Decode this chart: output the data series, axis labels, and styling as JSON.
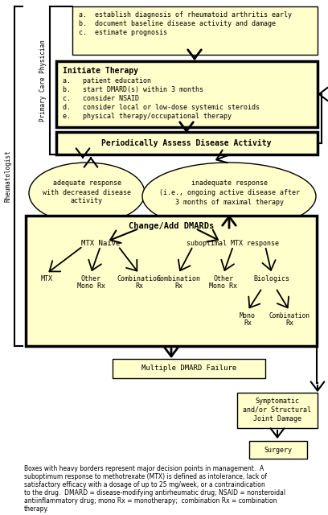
{
  "bg_color": "#FFFFFF",
  "box_fill": "#FFFFCC",
  "footnote_lines": [
    "Boxes with heavy borders represent major decision points in management.  A",
    "suboptimum response to methotrexate (MTX) is defined as intolerance, lack of",
    "satisfactory efficacy with a dosage of up to 25 mg/week, or a contraindication",
    "to the drug.  DMARD = disease-modifying antirheumatic drug; NSAID = nonsteroidal",
    "antiinflammatory drug; mono Rx = monotherapy;  combination Rx = combination",
    "therapy."
  ]
}
